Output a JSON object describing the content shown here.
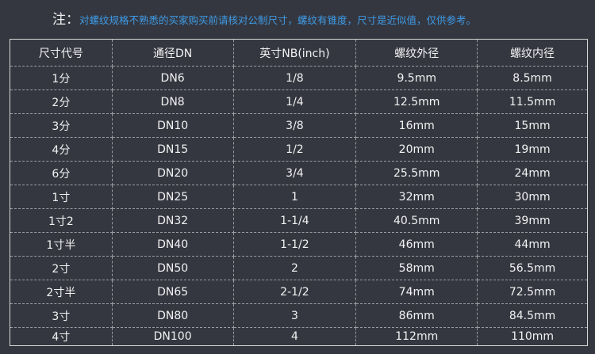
{
  "note": {
    "label": "注：",
    "text": "对螺纹规格不熟悉的买家购买前请核对公制尺寸，螺纹有锥度，尺寸是近似值，仅供参考。"
  },
  "table": {
    "headers": [
      "尺寸代号",
      "通径DN",
      "英寸NB(inch)",
      "螺纹外径",
      "螺纹内径"
    ],
    "rows": [
      [
        "1分",
        "DN6",
        "1/8",
        "9.5mm",
        "8.5mm"
      ],
      [
        "2分",
        "DN8",
        "1/4",
        "12.5mm",
        "11.5mm"
      ],
      [
        "3分",
        "DN10",
        "3/8",
        "16mm",
        "15mm"
      ],
      [
        "4分",
        "DN15",
        "1/2",
        "20mm",
        "19mm"
      ],
      [
        "6分",
        "DN20",
        "3/4",
        "25.5mm",
        "24mm"
      ],
      [
        "1寸",
        "DN25",
        "1",
        "32mm",
        "30mm"
      ],
      [
        "1寸2",
        "DN32",
        "1-1/4",
        "40.5mm",
        "39mm"
      ],
      [
        "1寸半",
        "DN40",
        "1-1/2",
        "46mm",
        "44mm"
      ],
      [
        "2寸",
        "DN50",
        "2",
        "58mm",
        "56.5mm"
      ],
      [
        "2寸半",
        "DN65",
        "2-1/2",
        "74mm",
        "72.5mm"
      ],
      [
        "3寸",
        "DN80",
        "3",
        "86mm",
        "84.5mm"
      ],
      [
        "4寸",
        "DN100",
        "4",
        "112mm",
        "110mm"
      ]
    ]
  },
  "colors": {
    "background": "#353740",
    "note_text": "#3d9be6"
  }
}
